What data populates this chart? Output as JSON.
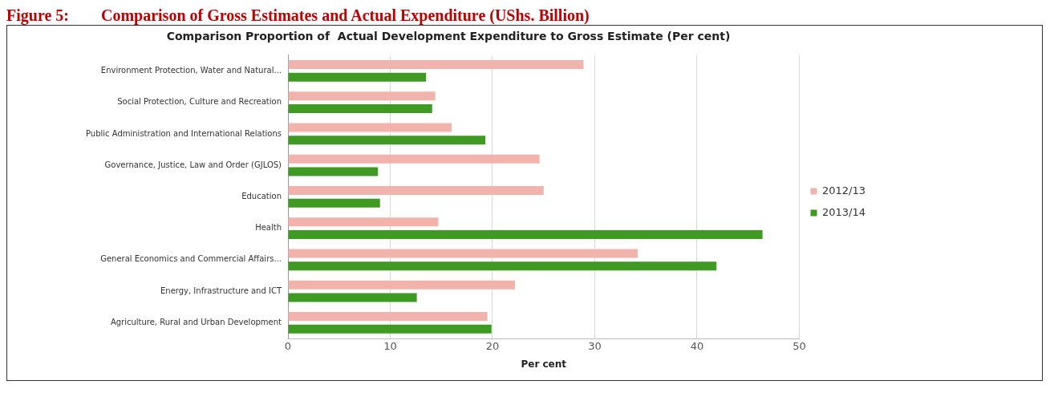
{
  "chart_data": {
    "type": "bar",
    "orientation": "horizontal",
    "title": "Comparison Proportion of  Actual Development Expenditure to Gross Estimate (Per cent)",
    "xlabel": "Per cent",
    "annotations": [
      "Figure 5:        Comparison of Gross Estimates and Actual Expenditure (UShs. Billion)"
    ],
    "categories": [
      "Environment Protection, Water and Natural...",
      "Social Protection, Culture and Recreation",
      "Public Administration and International Relations",
      "Governance, Justice, Law and Order (GJLOS)",
      "Education",
      "Health",
      "General Economics and Commercial Affairs...",
      "Energy, Infrastructure and ICT",
      "Agriculture, Rural and Urban Development"
    ],
    "series": [
      {
        "name": "2012/13",
        "color": "#f2b3ac",
        "values": [
          28.9,
          14.4,
          16,
          24.6,
          25,
          14.7,
          34.2,
          22.2,
          19.5
        ]
      },
      {
        "name": "2013/14",
        "color": "#3f9a22",
        "values": [
          13.5,
          14.1,
          19.3,
          8.8,
          9,
          46.4,
          41.9,
          12.6,
          19.9
        ]
      }
    ],
    "xlim": [
      0,
      50
    ],
    "xticks": [
      0,
      10,
      20,
      30,
      40,
      50
    ],
    "grid": "x",
    "legend": "right"
  }
}
